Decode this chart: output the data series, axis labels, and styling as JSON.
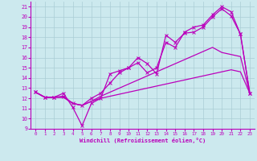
{
  "xlabel": "Windchill (Refroidissement éolien,°C)",
  "xlim": [
    -0.5,
    23.5
  ],
  "ylim": [
    9,
    21.5
  ],
  "yticks": [
    9,
    10,
    11,
    12,
    13,
    14,
    15,
    16,
    17,
    18,
    19,
    20,
    21
  ],
  "xticks": [
    0,
    1,
    2,
    3,
    4,
    5,
    6,
    7,
    8,
    9,
    10,
    11,
    12,
    13,
    14,
    15,
    16,
    17,
    18,
    19,
    20,
    21,
    22,
    23
  ],
  "bg_color": "#cce9ee",
  "grid_color": "#aacdd5",
  "line_color": "#bb00bb",
  "line1_y": [
    12.6,
    12.1,
    12.1,
    12.5,
    11.1,
    9.3,
    11.5,
    12.0,
    14.4,
    14.7,
    15.0,
    16.0,
    15.4,
    14.4,
    18.2,
    17.5,
    18.4,
    18.5,
    19.0,
    20.0,
    20.8,
    20.1,
    18.3,
    12.5
  ],
  "line2_y": [
    12.6,
    12.1,
    12.1,
    12.2,
    11.5,
    11.3,
    12.0,
    12.5,
    13.5,
    14.5,
    15.0,
    15.5,
    14.5,
    15.0,
    17.5,
    17.0,
    18.5,
    19.0,
    19.2,
    20.2,
    21.0,
    20.5,
    18.3,
    12.5
  ],
  "line3_y": [
    12.6,
    12.1,
    12.1,
    12.1,
    11.5,
    11.3,
    11.7,
    12.2,
    12.6,
    13.0,
    13.4,
    13.8,
    14.2,
    14.6,
    15.0,
    15.4,
    15.8,
    16.2,
    16.6,
    17.0,
    16.5,
    16.3,
    16.1,
    12.5
  ],
  "line4_y": [
    12.6,
    12.1,
    12.1,
    12.1,
    11.5,
    11.3,
    11.7,
    12.0,
    12.2,
    12.4,
    12.6,
    12.8,
    13.0,
    13.2,
    13.4,
    13.6,
    13.8,
    14.0,
    14.2,
    14.4,
    14.6,
    14.8,
    14.6,
    12.5
  ]
}
